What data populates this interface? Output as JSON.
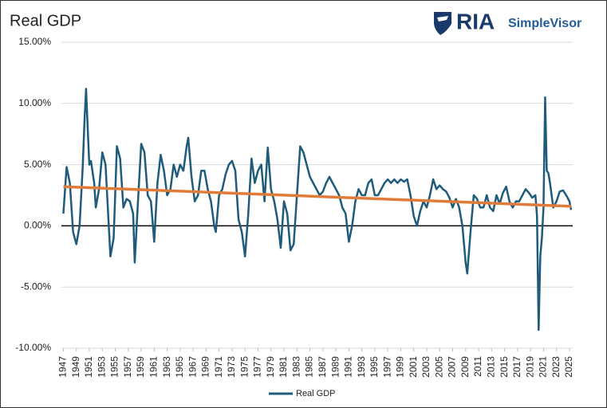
{
  "chart_data": {
    "type": "line",
    "title": "Real GDP",
    "x": [
      1947,
      1947.5,
      1948,
      1948.5,
      1949,
      1949.5,
      1950,
      1950.25,
      1950.5,
      1950.75,
      1951,
      1951.25,
      1951.75,
      1952,
      1952.5,
      1953,
      1953.5,
      1954,
      1954.25,
      1954.75,
      1955.25,
      1955.75,
      1956.25,
      1956.75,
      1957.25,
      1957.75,
      1958,
      1958.5,
      1959,
      1959.5,
      1960,
      1960.5,
      1961,
      1961.5,
      1962,
      1962.5,
      1963,
      1963.5,
      1964,
      1964.5,
      1965,
      1965.5,
      1966,
      1966.25,
      1966.75,
      1967.25,
      1967.75,
      1968.25,
      1968.75,
      1969.25,
      1969.75,
      1970.25,
      1970.5,
      1971,
      1971.5,
      1972,
      1972.5,
      1973,
      1973.5,
      1974,
      1974.5,
      1975,
      1975.5,
      1976,
      1976.5,
      1977,
      1977.5,
      1978,
      1978.5,
      1979,
      1979.5,
      1980,
      1980.5,
      1981,
      1981.5,
      1982,
      1982.5,
      1983,
      1983.5,
      1984,
      1984.5,
      1985,
      1985.5,
      1986,
      1986.5,
      1987,
      1987.5,
      1988,
      1988.5,
      1989,
      1989.5,
      1990,
      1990.5,
      1991,
      1991.5,
      1992,
      1992.5,
      1993,
      1993.5,
      1994,
      1994.5,
      1995,
      1995.5,
      1996,
      1996.5,
      1997,
      1997.5,
      1998,
      1998.5,
      1999,
      1999.5,
      2000,
      2000.5,
      2001,
      2001.5,
      2002,
      2002.5,
      2003,
      2003.5,
      2004,
      2004.5,
      2005,
      2005.5,
      2006,
      2006.5,
      2007,
      2007.5,
      2008,
      2008.5,
      2009,
      2009.25,
      2009.75,
      2010.25,
      2010.75,
      2011.25,
      2011.75,
      2012.25,
      2012.75,
      2013.25,
      2013.75,
      2014.25,
      2014.75,
      2015.25,
      2015.75,
      2016.25,
      2016.75,
      2017.25,
      2017.75,
      2018.25,
      2018.75,
      2019.25,
      2019.75,
      2020,
      2020.25,
      2020.5,
      2020.75,
      2021,
      2021.25,
      2021.5,
      2021.75,
      2022,
      2022.5,
      2023,
      2023.5,
      2024,
      2024.5,
      2025,
      2025.25
    ],
    "series": [
      {
        "name": "Real GDP",
        "color": "#1f5b7a",
        "values": [
          1.0,
          4.8,
          3.5,
          -0.5,
          -1.5,
          0.0,
          5.0,
          8.5,
          11.2,
          8.0,
          5.0,
          5.3,
          3.5,
          1.5,
          3.0,
          6.0,
          5.0,
          0.0,
          -2.5,
          -1.0,
          6.5,
          5.5,
          1.5,
          2.2,
          2.0,
          1.0,
          -3.0,
          2.0,
          6.7,
          6.0,
          2.5,
          2.0,
          -1.3,
          3.5,
          5.8,
          4.5,
          2.5,
          3.0,
          5.0,
          4.0,
          5.0,
          4.5,
          6.5,
          7.2,
          4.0,
          2.0,
          2.5,
          4.5,
          4.5,
          3.0,
          2.0,
          0.0,
          -0.5,
          2.5,
          3.0,
          4.2,
          5.0,
          5.3,
          4.5,
          0.5,
          -0.5,
          -2.5,
          1.0,
          5.5,
          3.5,
          4.5,
          5.0,
          2.0,
          6.4,
          3.0,
          2.0,
          0.5,
          -1.8,
          2.0,
          1.0,
          -2.0,
          -1.5,
          2.5,
          6.5,
          6.0,
          5.0,
          4.0,
          3.5,
          3.0,
          2.5,
          2.8,
          3.5,
          4.0,
          3.5,
          3.0,
          2.5,
          1.5,
          1.0,
          -1.3,
          0.0,
          2.0,
          3.0,
          2.5,
          2.5,
          3.5,
          3.8,
          2.5,
          2.5,
          3.0,
          3.5,
          3.8,
          3.5,
          3.8,
          3.5,
          3.8,
          3.6,
          3.8,
          2.5,
          0.8,
          0.0,
          1.2,
          2.0,
          1.5,
          2.5,
          3.8,
          3.0,
          3.3,
          3.0,
          2.8,
          2.3,
          1.5,
          2.2,
          1.5,
          0.0,
          -3.0,
          -3.9,
          -0.5,
          2.5,
          2.2,
          1.5,
          1.5,
          2.5,
          1.5,
          1.2,
          2.5,
          1.8,
          2.7,
          3.2,
          2.0,
          1.5,
          2.0,
          2.0,
          2.5,
          3.0,
          2.7,
          2.3,
          2.5,
          0.8,
          -8.5,
          -2.5,
          -1.0,
          1.5,
          10.5,
          4.5,
          4.3,
          3.5,
          1.5,
          2.0,
          2.8,
          2.9,
          2.5,
          2.0,
          1.3
        ]
      }
    ],
    "trend": {
      "color": "#e07b39",
      "x": [
        1947,
        2025.25
      ],
      "values": [
        3.2,
        1.6
      ]
    },
    "xlim": [
      1946.7,
      2025.5
    ],
    "xticks": [
      1947,
      1949,
      1951,
      1953,
      1955,
      1957,
      1959,
      1961,
      1963,
      1965,
      1967,
      1969,
      1971,
      1973,
      1975,
      1977,
      1979,
      1981,
      1983,
      1985,
      1987,
      1989,
      1991,
      1993,
      1995,
      1997,
      1999,
      2001,
      2003,
      2005,
      2007,
      2009,
      2011,
      2013,
      2015,
      2017,
      2019,
      2021,
      2023,
      2025
    ],
    "ylim": [
      -10,
      15
    ],
    "yticks": [
      {
        "value": -10,
        "label": "-10.00%"
      },
      {
        "value": -5,
        "label": "-5.00%"
      },
      {
        "value": 0,
        "label": "0.00%"
      },
      {
        "value": 5,
        "label": "5.00%"
      },
      {
        "value": 10,
        "label": "10.00%"
      },
      {
        "value": 15,
        "label": "15.00%"
      }
    ],
    "grid": true
  },
  "brand": {
    "name": "RIA",
    "product": "SimpleVisor"
  }
}
